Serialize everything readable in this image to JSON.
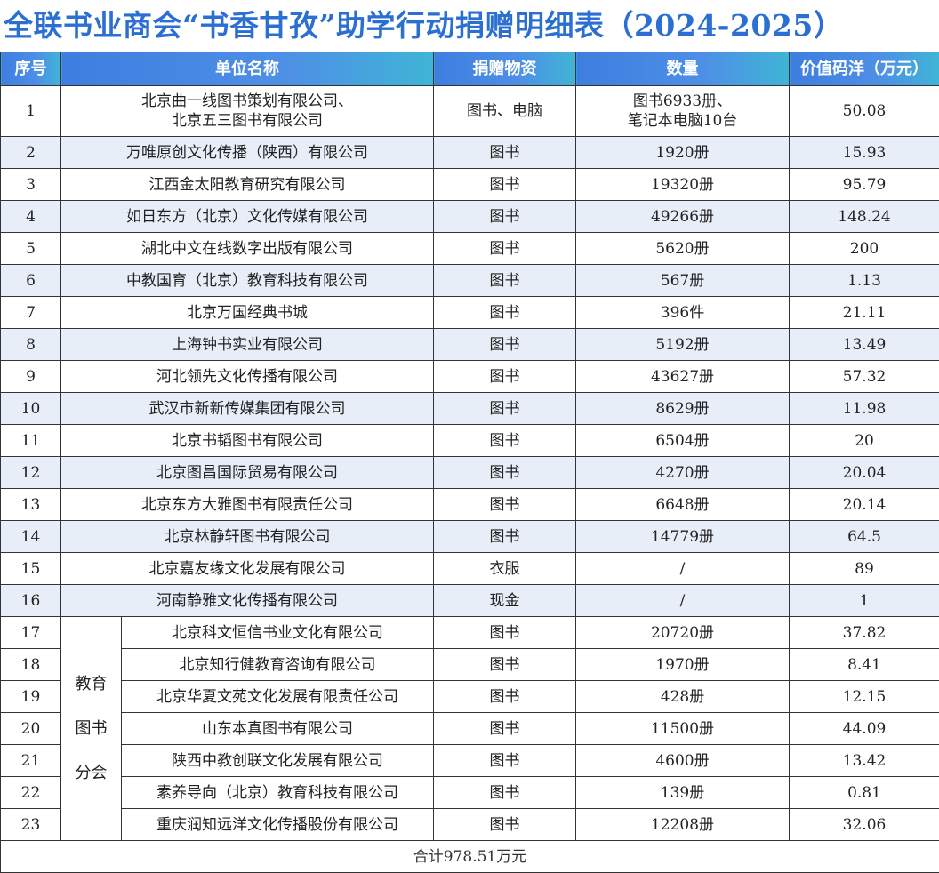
{
  "header": {
    "title": "全联书业商会“书香甘孜”助学行动捐赠明细表（2024-2025）"
  },
  "table": {
    "columns": [
      "序号",
      "单位名称",
      "捐赠物资",
      "数量",
      "价值码洋（万元）"
    ],
    "rows": [
      [
        "1",
        "北京曲一线图书策划有限公司、\n北京五三图书有限公司",
        "图书、电脑",
        "图书6933册、\n笔记本电脑10台",
        "50.08"
      ],
      [
        "2",
        "万唯原创文化传播（陕西）有限公司",
        "图书",
        "1920册",
        "15.93"
      ],
      [
        "3",
        "江西金太阳教育研究有限公司",
        "图书",
        "19320册",
        "95.79"
      ],
      [
        "4",
        "如日东方（北京）文化传媒有限公司",
        "图书",
        "49266册",
        "148.24"
      ],
      [
        "5",
        "湖北中文在线数字出版有限公司",
        "图书",
        "5620册",
        "200"
      ],
      [
        "6",
        "中教国育（北京）教育科技有限公司",
        "图书",
        "567册",
        "1.13"
      ],
      [
        "7",
        "北京万国经典书城",
        "图书",
        "396件",
        "21.11"
      ],
      [
        "8",
        "上海钟书实业有限公司",
        "图书",
        "5192册",
        "13.49"
      ],
      [
        "9",
        "河北领先文化传播有限公司",
        "图书",
        "43627册",
        "57.32"
      ],
      [
        "10",
        "武汉市新新传媒集团有限公司",
        "图书",
        "8629册",
        "11.98"
      ],
      [
        "11",
        "北京书韬图书有限公司",
        "图书",
        "6504册",
        "20"
      ],
      [
        "12",
        "北京图昌国际贸易有限公司",
        "图书",
        "4270册",
        "20.04"
      ],
      [
        "13",
        "北京东方大雅图书有限责任公司",
        "图书",
        "6648册",
        "20.14"
      ],
      [
        "14",
        "北京林静轩图书有限公司",
        "图书",
        "14779册",
        "64.5"
      ],
      [
        "15",
        "北京嘉友缘文化发展有限公司",
        "衣服",
        "/",
        "89"
      ],
      [
        "16",
        "河南静雅文化传播有限公司",
        "现金",
        "/",
        "1"
      ]
    ],
    "group": {
      "label": [
        "教育",
        "图书",
        "分会"
      ],
      "rows": [
        [
          "17",
          "北京科文恒信书业文化有限公司",
          "图书",
          "20720册",
          "37.82"
        ],
        [
          "18",
          "北京知行健教育咨询有限公司",
          "图书",
          "1970册",
          "8.41"
        ],
        [
          "19",
          "北京华夏文苑文化发展有限责任公司",
          "图书",
          "428册",
          "12.15"
        ],
        [
          "20",
          "山东本真图书有限公司",
          "图书",
          "11500册",
          "44.09"
        ],
        [
          "21",
          "陕西中教创联文化发展有限公司",
          "图书",
          "4600册",
          "13.42"
        ],
        [
          "22",
          "素养导向（北京）教育科技有限公司",
          "图书",
          "139册",
          "0.81"
        ],
        [
          "23",
          "重庆润知远洋文化传播股份有限公司",
          "图书",
          "12208册",
          "32.06"
        ]
      ]
    },
    "total": "合计978.51万元"
  }
}
